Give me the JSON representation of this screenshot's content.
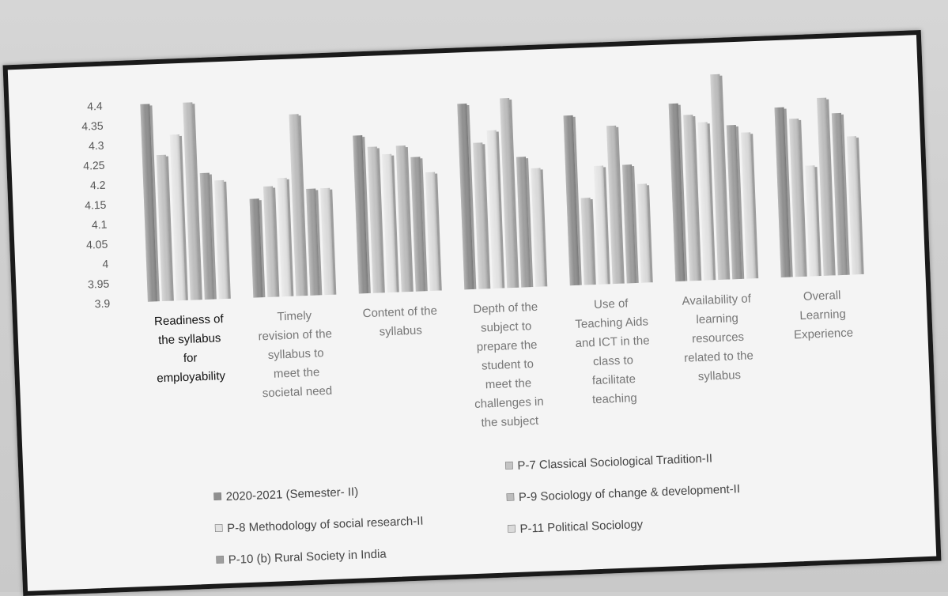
{
  "chart_data": {
    "type": "bar",
    "title": "",
    "xlabel": "",
    "ylabel": "",
    "ylim": [
      3.9,
      4.4
    ],
    "yticks": [
      "4.4",
      "4.35",
      "4.3",
      "4.25",
      "4.2",
      "4.15",
      "4.1",
      "4.05",
      "4",
      "3.95",
      "3.9"
    ],
    "categories": [
      [
        "Readiness of",
        "the syllabus",
        "for",
        "employability"
      ],
      [
        "Timely",
        "revision of the",
        "syllabus to",
        "meet the",
        "societal need"
      ],
      [
        "Content of the",
        "syllabus"
      ],
      [
        "Depth of the",
        "subject to",
        "prepare the",
        "student to",
        "meet the",
        "challenges in",
        "the subject"
      ],
      [
        "Use of",
        "Teaching Aids",
        "and ICT in the",
        "class to",
        "facilitate",
        "teaching"
      ],
      [
        "Availability of",
        "learning",
        "resources",
        "related to the",
        "syllabus"
      ],
      [
        "Overall",
        "Learning",
        "Experience"
      ]
    ],
    "series": [
      {
        "name": "2020-2021 (Semester- II)",
        "color": "#8f8f8f",
        "values": [
          4.4,
          4.15,
          4.3,
          4.37,
          4.33,
          4.35,
          4.33
        ]
      },
      {
        "name": "P-7 Classical Sociological Tradition-II",
        "color": "#c4c4c4",
        "values": [
          4.27,
          4.18,
          4.27,
          4.27,
          4.12,
          4.32,
          4.3
        ]
      },
      {
        "name": "P-8 Methodology of social research-II",
        "color": "#e2e2e2",
        "values": [
          4.32,
          4.2,
          4.25,
          4.3,
          4.2,
          4.3,
          4.18
        ]
      },
      {
        "name": "P-9 Sociology of change & development-II",
        "color": "#bdbdbd",
        "values": [
          4.4,
          4.36,
          4.27,
          4.38,
          4.3,
          4.42,
          4.35
        ]
      },
      {
        "name": "P-10 (b) Rural Society in India",
        "color": "#9e9e9e",
        "values": [
          4.22,
          4.17,
          4.24,
          4.23,
          4.2,
          4.29,
          4.31
        ]
      },
      {
        "name": "P-11 Political Sociology",
        "color": "#dadada",
        "values": [
          4.2,
          4.17,
          4.2,
          4.2,
          4.15,
          4.27,
          4.25
        ]
      }
    ],
    "legend_position": "bottom",
    "grid": false
  }
}
